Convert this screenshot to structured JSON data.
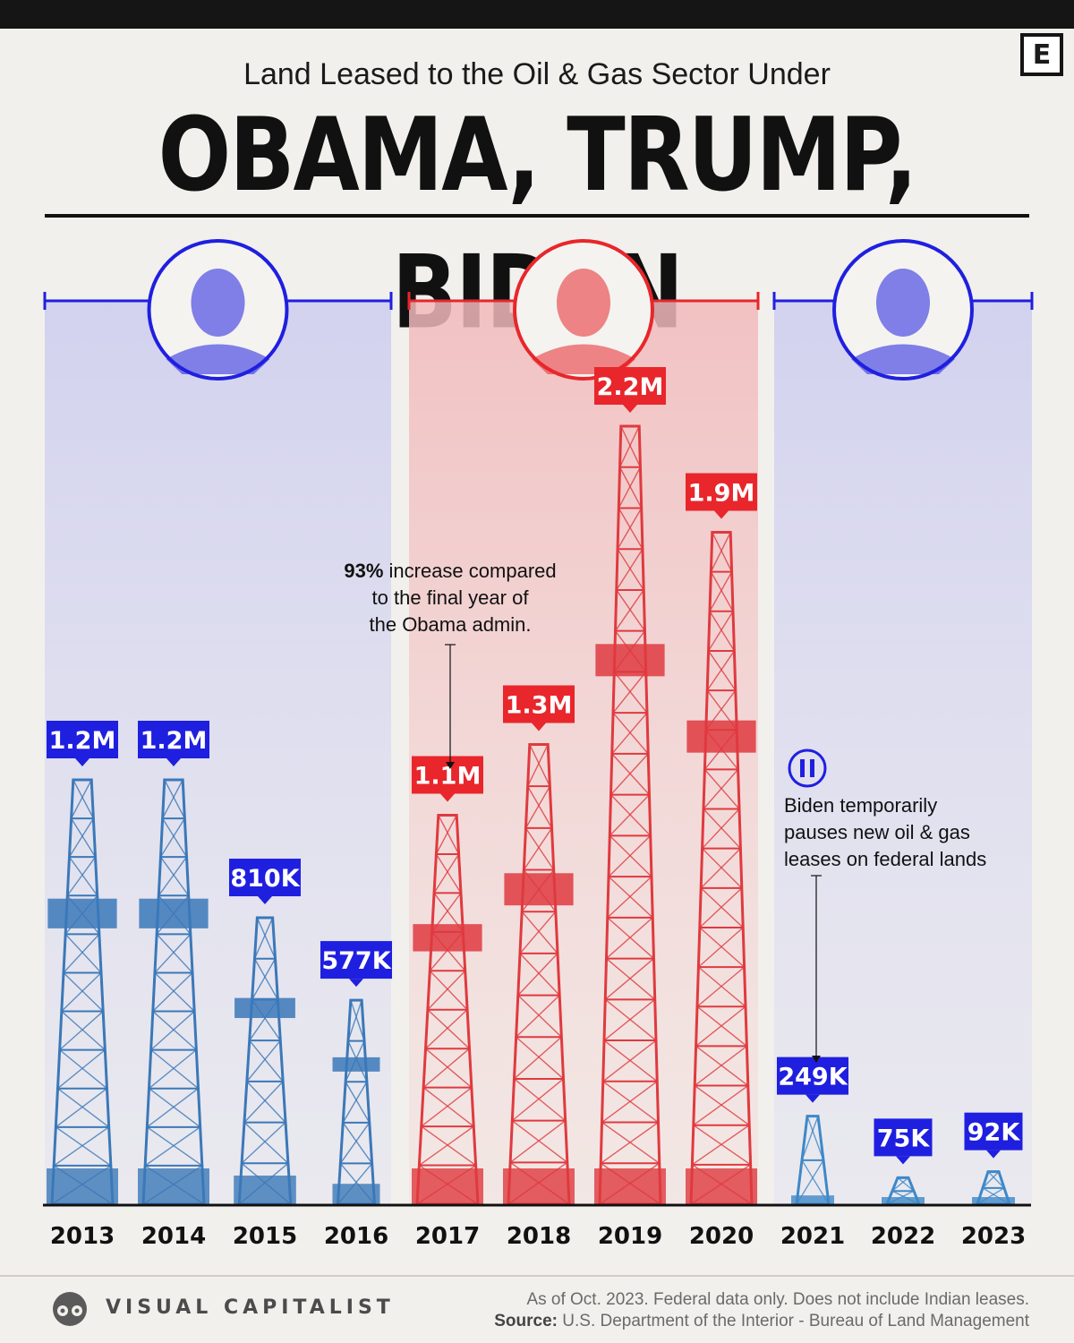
{
  "header": {
    "subtitle": "Land Leased to the Oil & Gas Sector Under",
    "title": "OBAMA, TRUMP, BIDEN",
    "logo_letter": "E"
  },
  "colors": {
    "obama": "#1f1fe0",
    "trump": "#e8262b",
    "biden": "#1f1fe0",
    "obama_tower": "#3b78b8",
    "trump_tower": "#df3a3f",
    "biden_tower": "#3e88c8"
  },
  "chart_data": {
    "type": "bar",
    "title": "OBAMA, TRUMP, BIDEN",
    "subtitle": "Land Leased to the Oil & Gas Sector Under",
    "ylabel": "",
    "categories": [
      "2013",
      "2014",
      "2015",
      "2016",
      "2017",
      "2018",
      "2019",
      "2020",
      "2021",
      "2022",
      "2023"
    ],
    "values": [
      1200000,
      1200000,
      810000,
      577000,
      1100000,
      1300000,
      2200000,
      1900000,
      249000,
      75000,
      92000
    ],
    "value_labels": [
      "1.2M",
      "1.2M",
      "810K",
      "577K",
      "1.1M",
      "1.3M",
      "2.2M",
      "1.9M",
      "249K",
      "75K",
      "92K"
    ],
    "administrations": [
      {
        "name": "Obama",
        "years": [
          "2013",
          "2014",
          "2015",
          "2016"
        ]
      },
      {
        "name": "Trump",
        "years": [
          "2017",
          "2018",
          "2019",
          "2020"
        ]
      },
      {
        "name": "Biden",
        "years": [
          "2021",
          "2022",
          "2023"
        ]
      }
    ],
    "annotations": [
      {
        "year": "2017",
        "bold": "93%",
        "text": [
          "increase compared",
          "to the final year of",
          "the Obama admin."
        ]
      },
      {
        "year": "2021",
        "icon": "pause-icon",
        "text": [
          "Biden temporarily",
          "pauses new oil & gas",
          "leases on federal lands"
        ]
      }
    ]
  },
  "footer": {
    "brand": "VISUAL CAPITALIST",
    "note": "As of Oct. 2023. Federal data only. Does not include Indian leases.",
    "source_label": "Source:",
    "source_text": "U.S. Department of the Interior - Bureau of Land Management"
  }
}
